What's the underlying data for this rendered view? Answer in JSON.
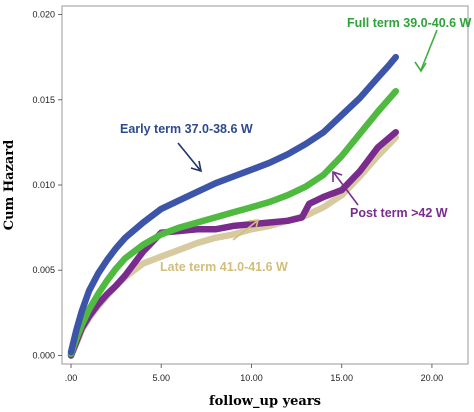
{
  "chart_data": {
    "type": "line",
    "xlabel": "follow_up years",
    "ylabel": "Cum Hazard",
    "xlim": [
      -0.5,
      22.0
    ],
    "ylim": [
      -0.0005,
      0.0205
    ],
    "x_ticks": [
      0,
      5,
      10,
      15,
      20
    ],
    "x_tick_labels": [
      ".00",
      "5.00",
      "10.00",
      "15.00",
      "20.00"
    ],
    "y_ticks": [
      0,
      0.005,
      0.01,
      0.015,
      0.02
    ],
    "y_tick_labels": [
      "0.000",
      "0.005",
      "0.010",
      "0.015",
      "0.020"
    ],
    "grid": false,
    "series": [
      {
        "name": "Early term 37.0-38.6 W",
        "color": "#3d55a8",
        "x": [
          0.0,
          0.3,
          0.6,
          1.0,
          1.5,
          2.0,
          2.5,
          3.0,
          4.0,
          5.0,
          6.0,
          7.0,
          8.0,
          9.0,
          10.0,
          11.0,
          12.0,
          13.0,
          14.0,
          15.0,
          16.0,
          17.0,
          17.6,
          18.0
        ],
        "y": [
          0.0002,
          0.0015,
          0.0026,
          0.0038,
          0.0048,
          0.0056,
          0.0063,
          0.0069,
          0.0078,
          0.0086,
          0.0091,
          0.0096,
          0.0101,
          0.0105,
          0.0109,
          0.0113,
          0.0118,
          0.0124,
          0.0131,
          0.0141,
          0.0151,
          0.0163,
          0.017,
          0.0175
        ]
      },
      {
        "name": "Full term 39.0-40.6 W",
        "color": "#4fba3f",
        "x": [
          0.0,
          0.3,
          0.6,
          1.0,
          1.5,
          2.0,
          2.5,
          3.0,
          4.0,
          5.0,
          6.0,
          7.0,
          8.0,
          9.0,
          10.0,
          11.0,
          12.0,
          13.0,
          14.0,
          15.0,
          16.0,
          17.0,
          18.0
        ],
        "y": [
          0.0001,
          0.001,
          0.0018,
          0.0027,
          0.0036,
          0.0044,
          0.0051,
          0.0057,
          0.0065,
          0.0071,
          0.0075,
          0.0078,
          0.0081,
          0.0084,
          0.0087,
          0.009,
          0.0094,
          0.0099,
          0.0106,
          0.0117,
          0.013,
          0.0143,
          0.0155
        ]
      },
      {
        "name": "Post term >42 W",
        "color": "#7a2c8e",
        "x": [
          0.0,
          0.3,
          0.6,
          1.0,
          1.5,
          2.0,
          2.5,
          3.0,
          4.0,
          5.0,
          6.0,
          7.0,
          8.0,
          9.0,
          10.0,
          11.0,
          12.0,
          12.8,
          13.2,
          14.0,
          15.0,
          16.0,
          17.0,
          18.0
        ],
        "y": [
          0.0,
          0.0008,
          0.0016,
          0.0023,
          0.003,
          0.0036,
          0.0041,
          0.0047,
          0.0061,
          0.0072,
          0.0073,
          0.0074,
          0.0074,
          0.0076,
          0.0077,
          0.0078,
          0.0079,
          0.0081,
          0.0089,
          0.0093,
          0.0097,
          0.0108,
          0.0122,
          0.0131
        ]
      },
      {
        "name": "Late term 41.0-41.6 W",
        "color": "#d8caa0",
        "x": [
          0.0,
          0.3,
          0.6,
          1.0,
          1.5,
          2.0,
          2.5,
          3.0,
          4.0,
          5.0,
          6.0,
          7.0,
          8.0,
          9.0,
          10.0,
          11.0,
          12.0,
          13.0,
          14.0,
          15.0,
          16.0,
          17.0,
          18.0
        ],
        "y": [
          0.0,
          0.0007,
          0.0015,
          0.0022,
          0.0029,
          0.0035,
          0.0041,
          0.0046,
          0.0054,
          0.0058,
          0.0062,
          0.0066,
          0.0069,
          0.0071,
          0.0074,
          0.0076,
          0.0079,
          0.0082,
          0.0087,
          0.0094,
          0.0105,
          0.0117,
          0.0128
        ]
      }
    ],
    "annotations": [
      {
        "text": "Full term 39.0-40.6 W",
        "color": "#2fa33a"
      },
      {
        "text": "Early term 37.0-38.6 W",
        "color": "#2d4a8f"
      },
      {
        "text": "Post term >42 W",
        "color": "#7a2c8e"
      },
      {
        "text": "Late term 41.0-41.6 W",
        "color": "#d2be7c"
      }
    ]
  }
}
